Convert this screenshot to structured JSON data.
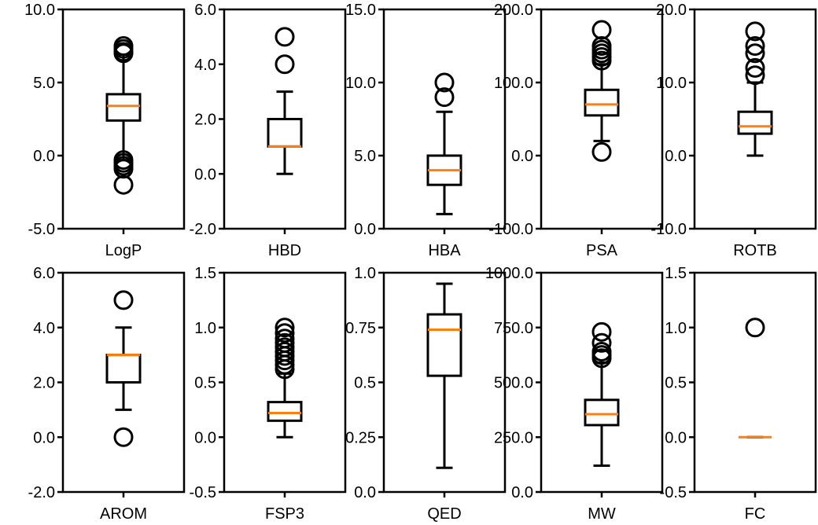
{
  "chart_data": [
    {
      "type": "box",
      "xlabel": "LogP",
      "ylim": [
        -5,
        10
      ],
      "yticks": [
        -5,
        0,
        5,
        10
      ],
      "tick_labels": [
        "-5.0",
        "0.0",
        "5.0",
        "10.0"
      ],
      "box": {
        "whislo": -0.3,
        "q1": 2.4,
        "median": 3.4,
        "q3": 4.2,
        "whishi": 6.9,
        "fliers": [
          7.5,
          7.3,
          7.1,
          7.0,
          -0.3,
          -0.5,
          -0.7,
          -0.9,
          -2.0
        ]
      }
    },
    {
      "type": "box",
      "xlabel": "HBD",
      "ylim": [
        -2,
        6
      ],
      "yticks": [
        -2,
        0,
        2,
        4,
        6
      ],
      "tick_labels": [
        "-2.0",
        "0.0",
        "2.0",
        "4.0",
        "6.0"
      ],
      "box": {
        "whislo": 0,
        "q1": 1,
        "median": 1,
        "q3": 2,
        "whishi": 3,
        "fliers": [
          4,
          5
        ]
      }
    },
    {
      "type": "box",
      "xlabel": "HBA",
      "ylim": [
        0,
        15
      ],
      "yticks": [
        0,
        5,
        10,
        15
      ],
      "tick_labels": [
        "0.0",
        "5.0",
        "10.0",
        "15.0"
      ],
      "box": {
        "whislo": 1,
        "q1": 3,
        "median": 4,
        "q3": 5,
        "whishi": 8,
        "fliers": [
          9,
          10
        ]
      }
    },
    {
      "type": "box",
      "xlabel": "PSA",
      "ylim": [
        -100,
        200
      ],
      "yticks": [
        -100,
        0,
        100,
        200
      ],
      "tick_labels": [
        "-100.0",
        "0.0",
        "100.0",
        "200.0"
      ],
      "box": {
        "whislo": 20,
        "q1": 55,
        "median": 70,
        "q3": 90,
        "whishi": 125,
        "fliers": [
          5,
          130,
          135,
          140,
          145,
          150,
          172
        ]
      }
    },
    {
      "type": "box",
      "xlabel": "ROTB",
      "ylim": [
        -10,
        20
      ],
      "yticks": [
        -10,
        0,
        10,
        20
      ],
      "tick_labels": [
        "-10.0",
        "0.0",
        "10.0",
        "20.0"
      ],
      "box": {
        "whislo": 0,
        "q1": 3,
        "median": 4,
        "q3": 6,
        "whishi": 10,
        "fliers": [
          11,
          12,
          14,
          15,
          17
        ]
      }
    },
    {
      "type": "box",
      "xlabel": "AROM",
      "ylim": [
        -2,
        6
      ],
      "yticks": [
        -2,
        0,
        2,
        4,
        6
      ],
      "tick_labels": [
        "-2.0",
        "0.0",
        "2.0",
        "4.0",
        "6.0"
      ],
      "box": {
        "whislo": 1,
        "q1": 2,
        "median": 3,
        "q3": 3,
        "whishi": 4,
        "fliers": [
          0,
          5
        ]
      }
    },
    {
      "type": "box",
      "xlabel": "FSP3",
      "ylim": [
        -0.5,
        1.5
      ],
      "yticks": [
        -0.5,
        0,
        0.5,
        1.0,
        1.5
      ],
      "tick_labels": [
        "-0.5",
        "0.0",
        "0.5",
        "1.0",
        "1.5"
      ],
      "box": {
        "whislo": 0,
        "q1": 0.15,
        "median": 0.22,
        "q3": 0.32,
        "whishi": 0.58,
        "fliers": [
          0.62,
          0.66,
          0.7,
          0.74,
          0.78,
          0.82,
          0.86,
          0.9,
          0.95,
          1.0
        ]
      }
    },
    {
      "type": "box",
      "xlabel": "QED",
      "ylim": [
        0,
        1
      ],
      "yticks": [
        0,
        0.25,
        0.5,
        0.75,
        1.0
      ],
      "tick_labels": [
        "0.0",
        "0.25",
        "0.5",
        "0.75",
        "1.0"
      ],
      "box": {
        "whislo": 0.11,
        "q1": 0.53,
        "median": 0.74,
        "q3": 0.81,
        "whishi": 0.95,
        "fliers": []
      }
    },
    {
      "type": "box",
      "xlabel": "MW",
      "ylim": [
        0,
        1000
      ],
      "yticks": [
        0,
        250,
        500,
        750,
        1000
      ],
      "tick_labels": [
        "0.0",
        "250.0",
        "500.0",
        "750.0",
        "1000.0"
      ],
      "box": {
        "whislo": 120,
        "q1": 305,
        "median": 355,
        "q3": 420,
        "whishi": 590,
        "fliers": [
          610,
          625,
          640,
          680,
          730
        ]
      }
    },
    {
      "type": "box",
      "xlabel": "FC",
      "ylim": [
        -0.5,
        1.5
      ],
      "yticks": [
        -0.5,
        0,
        0.5,
        1.0,
        1.5
      ],
      "tick_labels": [
        "-0.5",
        "0.0",
        "0.5",
        "1.0",
        "1.5"
      ],
      "box": {
        "whislo": 0,
        "q1": 0,
        "median": 0,
        "q3": 0,
        "whishi": 0,
        "fliers": [
          1
        ]
      }
    }
  ],
  "colors": {
    "median": "#ff7f0e",
    "stroke": "#000000",
    "background": "#ffffff"
  }
}
